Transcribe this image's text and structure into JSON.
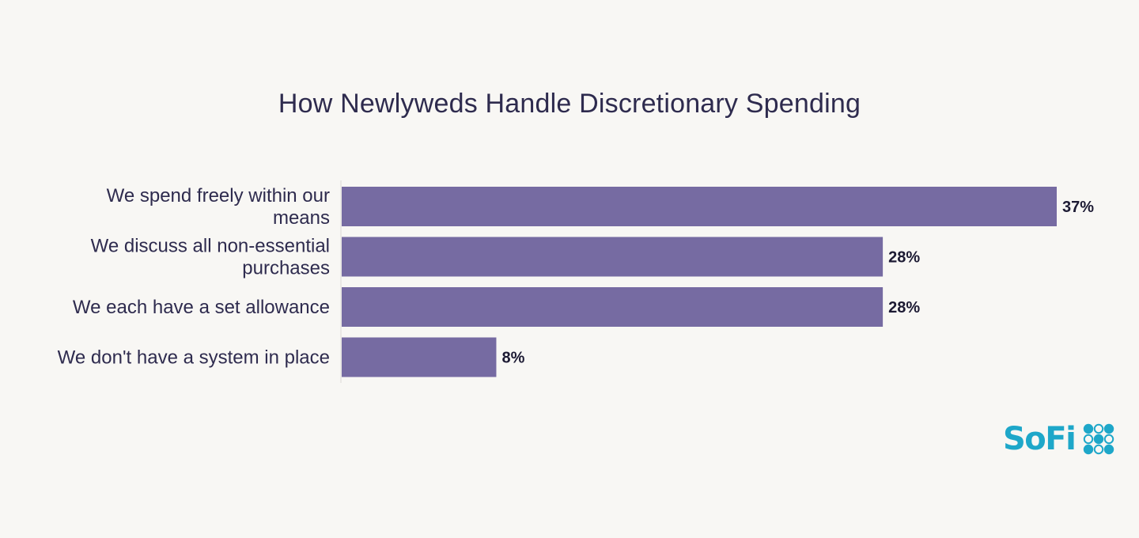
{
  "chart_data": {
    "type": "bar",
    "orientation": "horizontal",
    "title": "How Newlyweds Handle Discretionary Spending",
    "categories": [
      [
        "We spend freely within our",
        "means"
      ],
      [
        "We discuss all non-essential",
        "purchases"
      ],
      [
        "We each have a set allowance"
      ],
      [
        "We don't have a system in place"
      ]
    ],
    "values": [
      37,
      28,
      28,
      8
    ],
    "value_labels": [
      "37%",
      "28%",
      "28%",
      "8%"
    ],
    "unit": "%",
    "xlim": [
      0,
      37
    ],
    "grid": false,
    "legend": "none",
    "bar_color": "#766ba2"
  },
  "brand": {
    "name": "SoFi",
    "color": "#1ea7c9",
    "icon": "sofi-dots-logo-icon"
  }
}
